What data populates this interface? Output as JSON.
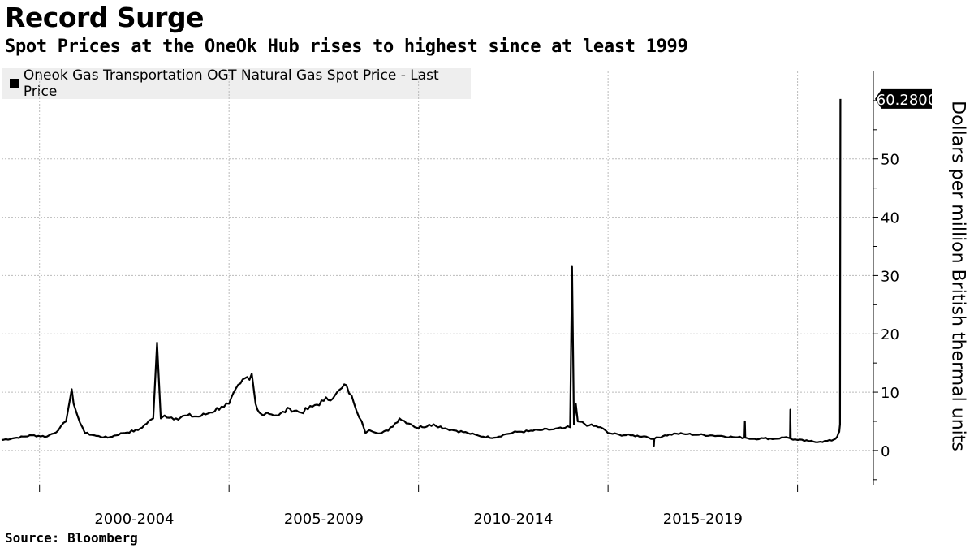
{
  "chart_data": {
    "type": "line",
    "title": "Record Surge",
    "subtitle": "Spot Prices at the OneOk Hub rises to highest since at least 1999",
    "ylabel": "Dollars per million British thermal units",
    "ylim": [
      -6,
      65
    ],
    "yticks": [
      "0",
      "10",
      "20",
      "30",
      "40",
      "50"
    ],
    "xlim": [
      1999.0,
      2022.0
    ],
    "xticks": [
      {
        "label": "2000-2004",
        "x": 2002.5
      },
      {
        "label": "2005-2009",
        "x": 2007.5
      },
      {
        "label": "2010-2014",
        "x": 2012.5
      },
      {
        "label": "2015-2019",
        "x": 2017.5
      }
    ],
    "grid": true,
    "legend_placement": "top-left",
    "series": [
      {
        "name": "Oneok Gas Transportation OGT Natural Gas Spot Price - Last Price",
        "x": [
          1999.0,
          1999.4,
          1999.8,
          2000.2,
          2000.5,
          2000.7,
          2000.85,
          2000.9,
          2001.0,
          2001.2,
          2001.5,
          2001.8,
          2002.2,
          2002.6,
          2003.0,
          2003.1,
          2003.2,
          2003.3,
          2003.6,
          2003.9,
          2004.2,
          2004.5,
          2004.8,
          2005.0,
          2005.3,
          2005.6,
          2005.7,
          2005.75,
          2005.8,
          2005.9,
          2006.0,
          2006.3,
          2006.6,
          2006.9,
          2007.2,
          2007.5,
          2007.8,
          2008.1,
          2008.3,
          2008.5,
          2008.6,
          2008.7,
          2008.8,
          2008.9,
          2009.2,
          2009.5,
          2009.8,
          2009.9,
          2010.0,
          2010.05,
          2010.1,
          2010.4,
          2010.7,
          2011.0,
          2011.3,
          2011.6,
          2012.0,
          2012.3,
          2012.6,
          2012.9,
          2013.2,
          2013.5,
          2013.8,
          2014.0,
          2014.05,
          2014.1,
          2014.15,
          2014.2,
          2014.5,
          2014.8,
          2015.0,
          2015.3,
          2015.6,
          2016.0,
          2016.2,
          2016.21,
          2016.22,
          2016.5,
          2016.8,
          2017.1,
          2017.4,
          2017.7,
          2018.0,
          2018.3,
          2018.6,
          2018.61,
          2018.62,
          2018.8,
          2019.1,
          2019.4,
          2019.7,
          2019.8,
          2019.81,
          2019.82,
          2020.0,
          2020.3,
          2020.6,
          2020.9,
          2021.0,
          2021.05,
          2021.08,
          2021.1,
          2021.12,
          2021.13
        ],
        "values": [
          1.8,
          2.2,
          2.6,
          2.4,
          3.5,
          5.0,
          10.5,
          8.0,
          6.0,
          3.0,
          2.5,
          2.2,
          3.0,
          3.5,
          5.5,
          18.5,
          5.5,
          6.0,
          5.5,
          6.0,
          5.8,
          6.5,
          7.5,
          8.0,
          11.5,
          13.2,
          8.0,
          7.0,
          6.5,
          6.0,
          6.5,
          6.0,
          7.2,
          6.5,
          7.5,
          8.5,
          9.5,
          11.2,
          8.0,
          5.0,
          3.0,
          3.5,
          3.2,
          3.0,
          3.4,
          5.5,
          4.5,
          4.0,
          3.8,
          4.2,
          4.0,
          4.5,
          3.8,
          3.4,
          3.0,
          2.5,
          2.2,
          2.8,
          3.2,
          3.3,
          3.5,
          3.6,
          3.8,
          4.0,
          31.5,
          4.5,
          8.0,
          5.0,
          4.3,
          4.0,
          3.0,
          2.7,
          2.6,
          2.4,
          2.0,
          0.8,
          2.0,
          2.6,
          2.9,
          2.8,
          2.7,
          2.6,
          2.5,
          2.3,
          2.2,
          5.0,
          2.2,
          2.0,
          2.1,
          2.0,
          2.3,
          2.1,
          7.0,
          2.0,
          1.8,
          1.6,
          1.5,
          1.7,
          2.0,
          2.4,
          3.0,
          3.2,
          4.5,
          60.28
        ]
      }
    ],
    "last_value_label": "60.2800",
    "source": "Source: Bloomberg"
  }
}
